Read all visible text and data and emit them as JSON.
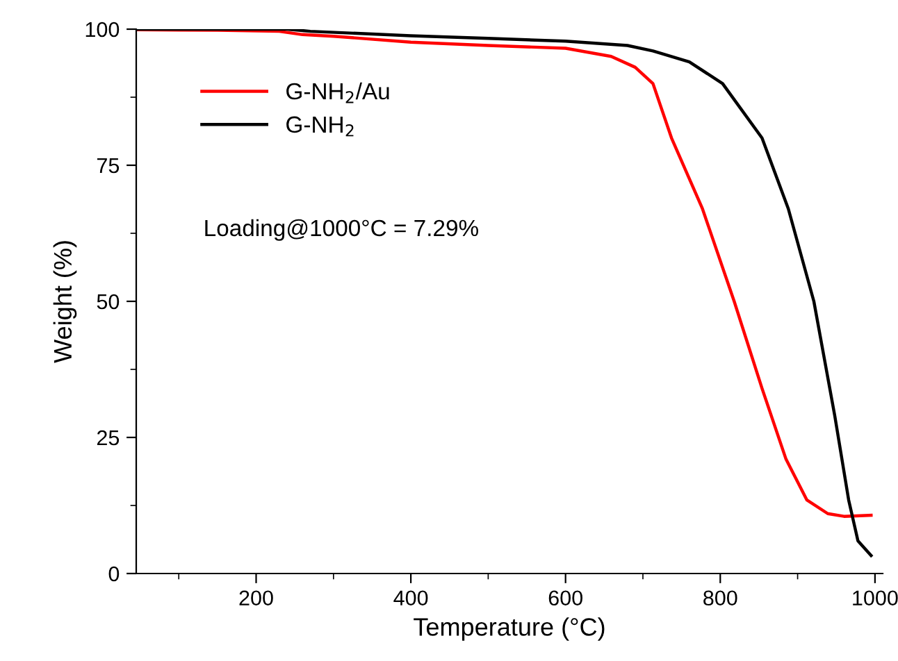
{
  "chart_data": {
    "type": "line",
    "xlabel": "Temperature (°C)",
    "ylabel": "Weight (%)",
    "xlim": [
      45,
      1010
    ],
    "ylim": [
      0,
      100
    ],
    "xticks": [
      200,
      400,
      600,
      800,
      1000
    ],
    "yticks": [
      0,
      25,
      50,
      75,
      100
    ],
    "grid": false,
    "legend": "top left",
    "line_style": "solid",
    "marker": "none",
    "annotations": [
      "Loading@1000°C = 7.29%"
    ],
    "series": [
      {
        "name": "G-NH$_{2}$/Au",
        "color": "#ff0000",
        "x": [
          45,
          150,
          230,
          260,
          300,
          400,
          500,
          600,
          659,
          690,
          713,
          737,
          777,
          818,
          854,
          885,
          912,
          939,
          960,
          995
        ],
        "values": [
          99.9,
          99.8,
          99.6,
          99,
          98.7,
          97.6,
          97,
          96.5,
          95,
          93,
          90,
          80,
          67,
          50,
          34,
          21,
          13.5,
          11,
          10.5,
          10.7
        ]
      },
      {
        "name": "G-NH$_{2}$",
        "color": "#000000",
        "x": [
          45,
          150,
          200,
          240,
          270,
          400,
          500,
          600,
          680,
          713,
          760,
          803,
          854,
          888,
          921,
          948,
          966,
          978,
          995
        ],
        "values": [
          100,
          100,
          100,
          100,
          99.6,
          98.8,
          98.3,
          97.8,
          97,
          96,
          94,
          90,
          80,
          67,
          50,
          29,
          13.5,
          6,
          3.3
        ]
      }
    ]
  }
}
